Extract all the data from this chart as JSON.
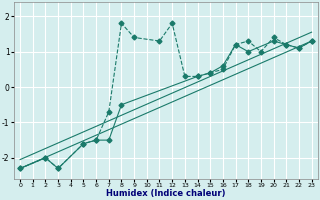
{
  "title": "",
  "xlabel": "Humidex (Indice chaleur)",
  "ylabel": "",
  "bg_color": "#d5eeee",
  "grid_color": "#ffffff",
  "line_color": "#1a7a6a",
  "xlim": [
    -0.5,
    23.5
  ],
  "ylim": [
    -2.6,
    2.4
  ],
  "xticks": [
    0,
    1,
    2,
    3,
    4,
    5,
    6,
    7,
    8,
    9,
    10,
    11,
    12,
    13,
    14,
    15,
    16,
    17,
    18,
    19,
    20,
    21,
    22,
    23
  ],
  "yticks": [
    -2,
    -1,
    0,
    1,
    2
  ],
  "lines": [
    {
      "x": [
        0,
        2,
        3,
        5,
        6,
        7,
        8,
        9,
        11,
        12,
        13,
        14,
        15,
        16,
        17,
        18,
        19,
        20,
        21,
        22,
        23
      ],
      "y": [
        -2.3,
        -2.0,
        -2.3,
        -1.6,
        -1.5,
        -0.7,
        1.8,
        1.4,
        1.3,
        1.8,
        0.3,
        0.3,
        0.4,
        0.5,
        1.2,
        1.3,
        1.0,
        1.4,
        1.2,
        1.1,
        1.3
      ],
      "marker": "D",
      "markersize": 2.5,
      "linestyle": "--"
    },
    {
      "x": [
        0,
        2,
        3,
        5,
        6,
        7,
        8,
        14,
        15,
        16,
        17,
        18,
        20,
        21,
        22,
        23
      ],
      "y": [
        -2.3,
        -2.0,
        -2.3,
        -1.6,
        -1.5,
        -1.5,
        -0.5,
        0.3,
        0.4,
        0.6,
        1.2,
        1.0,
        1.3,
        1.2,
        1.1,
        1.3
      ],
      "marker": "D",
      "markersize": 2.5,
      "linestyle": "-"
    },
    {
      "x": [
        0,
        23
      ],
      "y": [
        -2.3,
        1.3
      ],
      "marker": null,
      "markersize": 0,
      "linestyle": "-"
    },
    {
      "x": [
        0,
        23
      ],
      "y": [
        -2.05,
        1.55
      ],
      "marker": null,
      "markersize": 0,
      "linestyle": "-"
    }
  ]
}
